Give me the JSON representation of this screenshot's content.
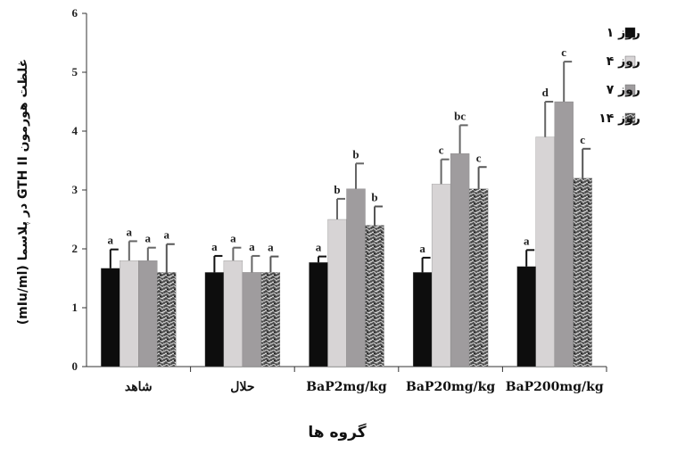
{
  "chart_data": {
    "type": "bar",
    "ylabel": "غلظت هورمون GTH II در پلاسما (mIu/ml)",
    "xlabel": "گروه ها",
    "ylim": [
      0,
      6
    ],
    "yticks": [
      "0",
      "1",
      "2",
      "3",
      "4",
      "5",
      "6"
    ],
    "categories": [
      "شاهد",
      "حلال",
      "BaP2mg/kg",
      "BaP20mg/kg",
      "BaP200mg/kg"
    ],
    "legend_position": "right",
    "series": [
      {
        "name": "روز ۱",
        "color": "#0d0d0d",
        "pattern": "solid",
        "values": [
          1.67,
          1.6,
          1.77,
          1.6,
          1.7
        ],
        "errors": [
          0.32,
          0.28,
          0.1,
          0.25,
          0.28
        ],
        "labels": [
          "a",
          "a",
          "a",
          "a",
          "a"
        ]
      },
      {
        "name": "روز ۴",
        "color": "#d7d4d5",
        "pattern": "solid",
        "values": [
          1.8,
          1.8,
          2.5,
          3.1,
          3.9
        ],
        "errors": [
          0.33,
          0.22,
          0.35,
          0.42,
          0.6
        ],
        "labels": [
          "a",
          "a",
          "b",
          "c",
          "d"
        ]
      },
      {
        "name": "روز ۷",
        "color": "#9f9c9e",
        "pattern": "solid",
        "values": [
          1.8,
          1.6,
          3.02,
          3.62,
          4.5
        ],
        "errors": [
          0.22,
          0.28,
          0.43,
          0.48,
          0.68
        ],
        "labels": [
          "a",
          "a",
          "b",
          "bc",
          "c"
        ]
      },
      {
        "name": "روز ۱۴",
        "color": "#555555",
        "pattern": "texture",
        "values": [
          1.6,
          1.6,
          2.4,
          3.02,
          3.2
        ],
        "errors": [
          0.48,
          0.27,
          0.32,
          0.37,
          0.5
        ],
        "labels": [
          "a",
          "a",
          "b",
          "c",
          "c"
        ]
      }
    ]
  }
}
